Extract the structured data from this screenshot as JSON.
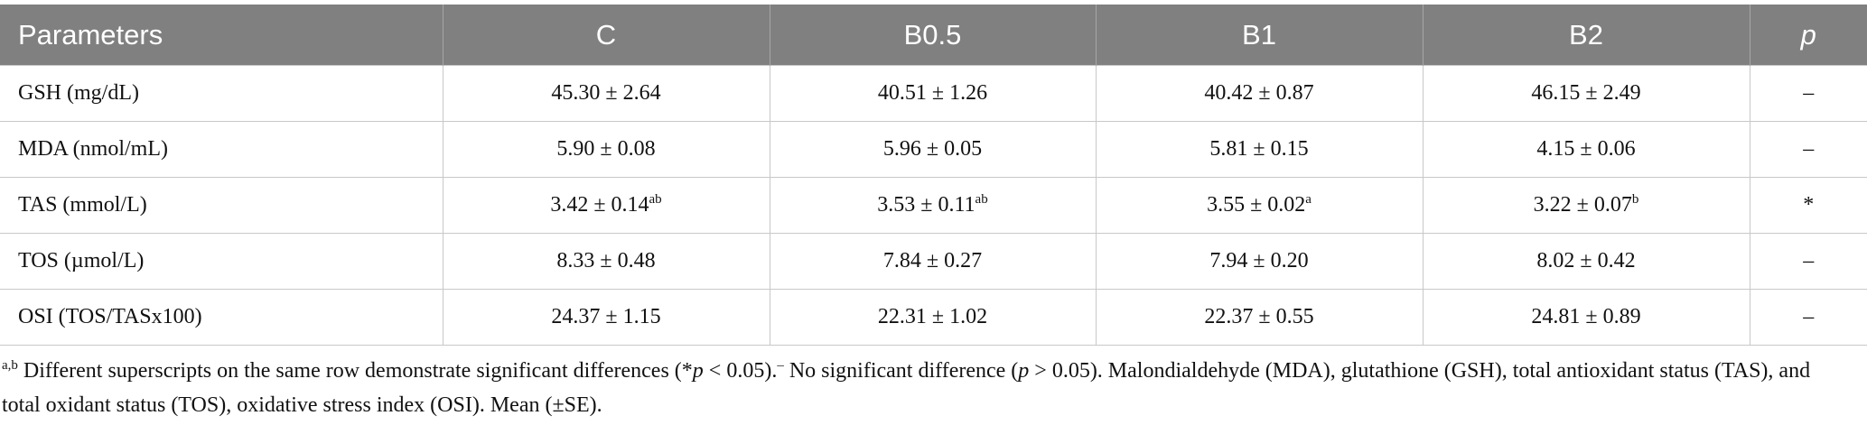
{
  "table": {
    "header": [
      "Parameters",
      "C",
      "B0.5",
      "B1",
      "B2",
      "p"
    ],
    "rows": [
      {
        "label": "GSH (mg/dL)",
        "cells": [
          {
            "value": "45.30 ± 2.64"
          },
          {
            "value": "40.51 ± 1.26"
          },
          {
            "value": "40.42 ± 0.87"
          },
          {
            "value": "46.15 ± 2.49"
          }
        ],
        "p": "–"
      },
      {
        "label": "MDA (nmol/mL)",
        "cells": [
          {
            "value": "5.90 ± 0.08"
          },
          {
            "value": "5.96 ± 0.05"
          },
          {
            "value": "5.81 ± 0.15"
          },
          {
            "value": "4.15 ± 0.06"
          }
        ],
        "p": "–"
      },
      {
        "label": "TAS (mmol/L)",
        "cells": [
          {
            "value": "3.42 ± 0.14",
            "sup": "ab"
          },
          {
            "value": "3.53 ± 0.11",
            "sup": "ab"
          },
          {
            "value": "3.55 ± 0.02",
            "sup": "a"
          },
          {
            "value": "3.22 ± 0.07",
            "sup": "b"
          }
        ],
        "p": "*"
      },
      {
        "label": "TOS (µmol/L)",
        "cells": [
          {
            "value": "8.33 ± 0.48"
          },
          {
            "value": "7.84 ± 0.27"
          },
          {
            "value": "7.94 ± 0.20"
          },
          {
            "value": "8.02 ± 0.42"
          }
        ],
        "p": "–"
      },
      {
        "label": "OSI (TOS/TASx100)",
        "cells": [
          {
            "value": "24.37 ± 1.15"
          },
          {
            "value": "22.31 ± 1.02"
          },
          {
            "value": "22.37 ± 0.55"
          },
          {
            "value": "24.81 ± 0.89"
          }
        ],
        "p": "–"
      }
    ]
  },
  "footnote": [
    "a,b",
    " Different superscripts on the same row demonstrate significant differences (*",
    "p",
    " < 0.05).",
    "–",
    " No significant difference (",
    "p",
    " > 0.05). Malondialdehyde (MDA), glutathione (GSH), total antioxidant status (TAS), and total oxidant status (TOS), oxidative stress index (OSI). Mean (±SE)."
  ]
}
